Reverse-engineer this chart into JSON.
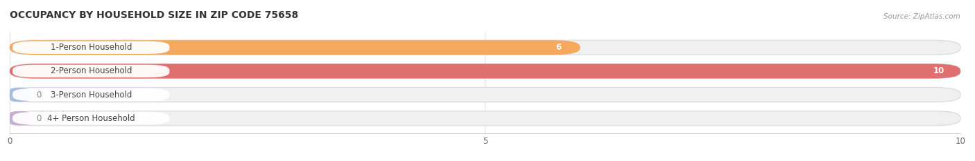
{
  "title": "OCCUPANCY BY HOUSEHOLD SIZE IN ZIP CODE 75658",
  "source": "Source: ZipAtlas.com",
  "categories": [
    "1-Person Household",
    "2-Person Household",
    "3-Person Household",
    "4+ Person Household"
  ],
  "values": [
    6,
    10,
    0,
    0
  ],
  "bar_colors": [
    "#f5a95c",
    "#e07070",
    "#a8bede",
    "#c9aed6"
  ],
  "xlim": [
    0,
    10
  ],
  "xticks": [
    0,
    5,
    10
  ],
  "figsize": [
    14.06,
    2.33
  ],
  "dpi": 100,
  "title_fontsize": 10,
  "label_fontsize": 8.5,
  "value_fontsize": 8.5
}
